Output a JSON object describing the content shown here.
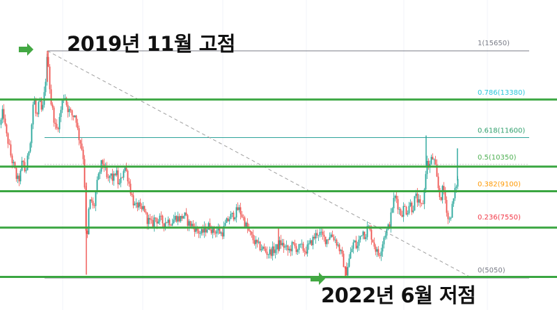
{
  "annotations": {
    "high_label": "2019년 11월 고점",
    "low_label": "2022년 6월 저점"
  },
  "colors": {
    "candle_up": "#26a69a",
    "candle_down": "#ef5350",
    "support_line": "#3aa641",
    "arrow": "#43a843",
    "trend_line": "#9e9e9e",
    "fib_line": "#2ea39a"
  },
  "chart_data": {
    "type": "candlestick",
    "title": "",
    "xlabel": "",
    "ylabel": "",
    "ylim": [
      4300,
      17000
    ],
    "swing_high": 15650,
    "swing_low": 5050,
    "fib_levels": [
      {
        "ratio": "1",
        "value": 15650,
        "label": "1(15650)",
        "color": "#787b86"
      },
      {
        "ratio": "0.786",
        "value": 13380,
        "label": "0.786(13380)",
        "color": "#26c6da"
      },
      {
        "ratio": "0.618",
        "value": 11600,
        "label": "0.618(11600)",
        "color": "#2e9e6b"
      },
      {
        "ratio": "0.5",
        "value": 10350,
        "label": "0.5(10350)",
        "color": "#4caf50"
      },
      {
        "ratio": "0.382",
        "value": 9100,
        "label": "0.382(9100)",
        "color": "#ff9800"
      },
      {
        "ratio": "0.236",
        "value": 7550,
        "label": "0.236(7550)",
        "color": "#f23645"
      },
      {
        "ratio": "0",
        "value": 5050,
        "label": "0(5050)",
        "color": "#787b86"
      }
    ],
    "support_lines": [
      13380,
      10250,
      9100,
      7400,
      5100
    ],
    "price_path": [
      [
        0,
        12200
      ],
      [
        4,
        12900
      ],
      [
        8,
        11800
      ],
      [
        12,
        11300
      ],
      [
        16,
        10600
      ],
      [
        20,
        10200
      ],
      [
        24,
        9600
      ],
      [
        28,
        9700
      ],
      [
        32,
        10600
      ],
      [
        36,
        9900
      ],
      [
        40,
        10800
      ],
      [
        44,
        11800
      ],
      [
        48,
        13600
      ],
      [
        52,
        12400
      ],
      [
        56,
        13300
      ],
      [
        60,
        12700
      ],
      [
        64,
        13900
      ],
      [
        68,
        15650
      ],
      [
        72,
        13400
      ],
      [
        76,
        12700
      ],
      [
        80,
        11900
      ],
      [
        84,
        12300
      ],
      [
        88,
        13100
      ],
      [
        92,
        13700
      ],
      [
        96,
        13000
      ],
      [
        100,
        12800
      ],
      [
        104,
        12600
      ],
      [
        108,
        12700
      ],
      [
        112,
        11700
      ],
      [
        116,
        11300
      ],
      [
        120,
        10500
      ],
      [
        124,
        6000
      ],
      [
        126,
        8000
      ],
      [
        130,
        8800
      ],
      [
        134,
        8200
      ],
      [
        138,
        9300
      ],
      [
        142,
        9900
      ],
      [
        146,
        10500
      ],
      [
        150,
        10200
      ],
      [
        154,
        9500
      ],
      [
        158,
        9900
      ],
      [
        162,
        9600
      ],
      [
        166,
        10100
      ],
      [
        170,
        9300
      ],
      [
        174,
        9700
      ],
      [
        178,
        10300
      ],
      [
        182,
        9900
      ],
      [
        186,
        9300
      ],
      [
        190,
        8700
      ],
      [
        194,
        8300
      ],
      [
        198,
        8500
      ],
      [
        202,
        8100
      ],
      [
        206,
        8400
      ],
      [
        210,
        7800
      ],
      [
        214,
        7700
      ],
      [
        218,
        7500
      ],
      [
        222,
        7900
      ],
      [
        226,
        7700
      ],
      [
        230,
        7800
      ],
      [
        234,
        7600
      ],
      [
        240,
        7750
      ],
      [
        246,
        7650
      ],
      [
        252,
        7900
      ],
      [
        258,
        7800
      ],
      [
        264,
        8000
      ],
      [
        270,
        7600
      ],
      [
        276,
        7500
      ],
      [
        282,
        7300
      ],
      [
        288,
        7100
      ],
      [
        294,
        7300
      ],
      [
        300,
        7500
      ],
      [
        306,
        7200
      ],
      [
        312,
        7300
      ],
      [
        318,
        7100
      ],
      [
        324,
        7600
      ],
      [
        330,
        7900
      ],
      [
        336,
        8000
      ],
      [
        342,
        8300
      ],
      [
        348,
        7900
      ],
      [
        354,
        7400
      ],
      [
        360,
        7000
      ],
      [
        366,
        6700
      ],
      [
        372,
        6500
      ],
      [
        378,
        6400
      ],
      [
        384,
        6200
      ],
      [
        390,
        6300
      ],
      [
        396,
        6400
      ],
      [
        402,
        6700
      ],
      [
        408,
        6500
      ],
      [
        414,
        6300
      ],
      [
        420,
        6600
      ],
      [
        426,
        6400
      ],
      [
        432,
        6500
      ],
      [
        438,
        6300
      ],
      [
        444,
        6600
      ],
      [
        450,
        6900
      ],
      [
        456,
        7200
      ],
      [
        462,
        7000
      ],
      [
        468,
        6800
      ],
      [
        474,
        7100
      ],
      [
        480,
        6900
      ],
      [
        486,
        6500
      ],
      [
        492,
        5900
      ],
      [
        496,
        5200
      ],
      [
        500,
        5800
      ],
      [
        504,
        6300
      ],
      [
        508,
        6800
      ],
      [
        512,
        6400
      ],
      [
        516,
        6900
      ],
      [
        520,
        7300
      ],
      [
        524,
        7000
      ],
      [
        528,
        7500
      ],
      [
        532,
        7100
      ],
      [
        536,
        6700
      ],
      [
        540,
        6300
      ],
      [
        544,
        6100
      ],
      [
        548,
        6600
      ],
      [
        552,
        7100
      ],
      [
        556,
        7300
      ],
      [
        560,
        7700
      ],
      [
        564,
        8600
      ],
      [
        568,
        8900
      ],
      [
        572,
        8300
      ],
      [
        576,
        8000
      ],
      [
        580,
        8400
      ],
      [
        584,
        8100
      ],
      [
        588,
        8600
      ],
      [
        592,
        8200
      ],
      [
        596,
        8900
      ],
      [
        600,
        8600
      ],
      [
        604,
        8300
      ],
      [
        608,
        8700
      ],
      [
        612,
        10500
      ],
      [
        616,
        10200
      ],
      [
        620,
        10700
      ],
      [
        624,
        10400
      ],
      [
        628,
        9400
      ],
      [
        632,
        8700
      ],
      [
        636,
        9300
      ],
      [
        640,
        8500
      ],
      [
        644,
        7600
      ],
      [
        648,
        8200
      ],
      [
        652,
        8900
      ],
      [
        656,
        9600
      ]
    ]
  }
}
